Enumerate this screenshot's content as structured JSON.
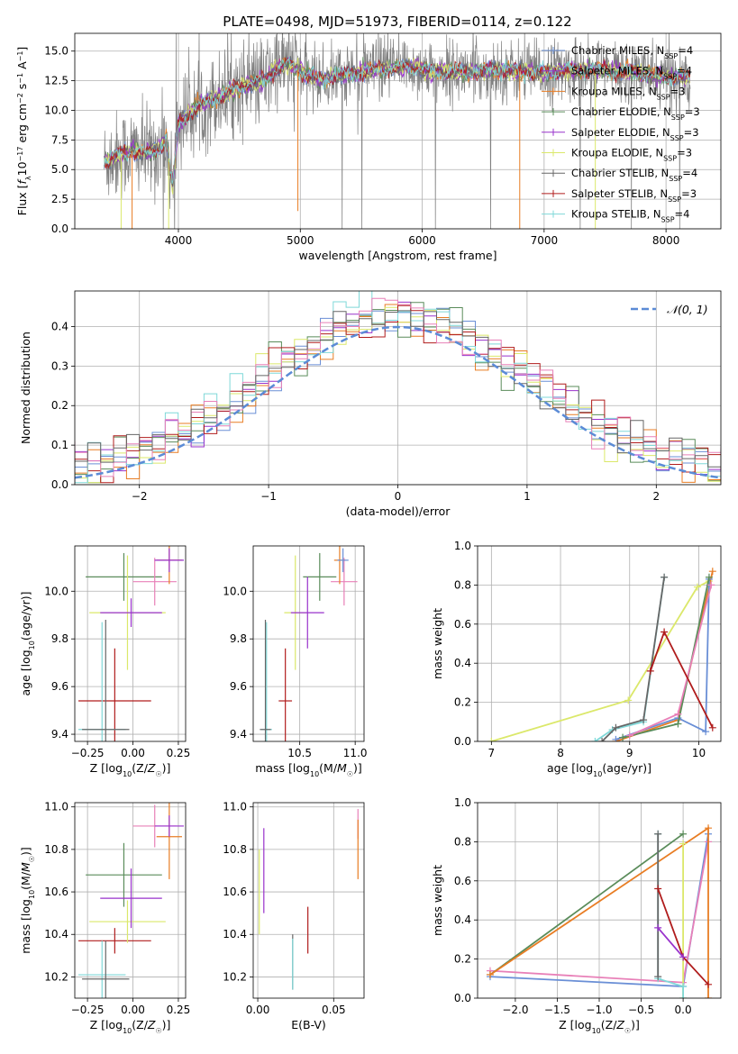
{
  "figure": {
    "title": "PLATE=0498, MJD=51973, FIBERID=0114, z=0.122"
  },
  "colors": {
    "obs": "#808080",
    "chabrier_miles": "#6a8fd6",
    "salpeter_miles": "#9932cc",
    "kroupa_miles": "#e87d24",
    "chabrier_elodie": "#5a8c5a",
    "salpeter_elodie": "#9932cc",
    "kroupa_elodie": "#dbe86a",
    "chabrier_stelib": "#666666",
    "salpeter_stelib": "#b01c1c",
    "kroupa_stelib": "#7fd8d8",
    "pink": "#e880b8",
    "gauss": "#5b8bd6"
  },
  "chart_data": [
    {
      "id": "spectrum",
      "type": "line",
      "title": "PLATE=0498, MJD=51973, FIBERID=0114, z=0.122",
      "xlabel": "wavelength [Angstrom, rest frame]",
      "ylabel": "Flux [f_λ10^-17 erg cm^-2 s^-1 A^-1]",
      "xlim": [
        3150,
        8450
      ],
      "ylim": [
        0,
        16.5
      ],
      "xticks": [
        4000,
        5000,
        6000,
        7000,
        8000
      ],
      "yticks": [
        0.0,
        2.5,
        5.0,
        7.5,
        10.0,
        12.5,
        15.0
      ],
      "ytick_labels": [
        "0.0",
        "2.5",
        "5.0",
        "7.5",
        "10.0",
        "12.5",
        "15.0"
      ],
      "legend_position": "top-right",
      "legend": [
        {
          "label": "Chabrier MILES, N",
          "sub": "SSP",
          "suffix": "=4",
          "color_key": "chabrier_miles"
        },
        {
          "label": "Salpeter MILES, N",
          "sub": "SSP",
          "suffix": "=4",
          "color_key": "salpeter_miles"
        },
        {
          "label": "Kroupa MILES, N",
          "sub": "SSP",
          "suffix": "=3",
          "color_key": "kroupa_miles"
        },
        {
          "label": "Chabrier ELODIE, N",
          "sub": "SSP",
          "suffix": "=3",
          "color_key": "chabrier_elodie"
        },
        {
          "label": "Salpeter ELODIE, N",
          "sub": "SSP",
          "suffix": "=3",
          "color_key": "salpeter_elodie"
        },
        {
          "label": "Kroupa ELODIE, N",
          "sub": "SSP",
          "suffix": "=3",
          "color_key": "kroupa_elodie"
        },
        {
          "label": "Chabrier STELIB, N",
          "sub": "SSP",
          "suffix": "=4",
          "color_key": "chabrier_stelib"
        },
        {
          "label": "Salpeter STELIB, N",
          "sub": "SSP",
          "suffix": "=3",
          "color_key": "salpeter_stelib"
        },
        {
          "label": "Kroupa STELIB, N",
          "sub": "SSP",
          "suffix": "=4",
          "color_key": "kroupa_stelib"
        }
      ],
      "continuum": [
        [
          3390,
          5.6
        ],
        [
          3450,
          6.0
        ],
        [
          3550,
          6.4
        ],
        [
          3650,
          6.6
        ],
        [
          3750,
          6.3
        ],
        [
          3850,
          6.9
        ],
        [
          3900,
          7.6
        ],
        [
          3950,
          3.5
        ],
        [
          4000,
          8.9
        ],
        [
          4100,
          9.8
        ],
        [
          4200,
          10.6
        ],
        [
          4300,
          11.0
        ],
        [
          4400,
          11.4
        ],
        [
          4500,
          12.0
        ],
        [
          4600,
          12.3
        ],
        [
          4700,
          12.4
        ],
        [
          4800,
          13.6
        ],
        [
          4900,
          13.9
        ],
        [
          5000,
          13.3
        ],
        [
          5100,
          12.8
        ],
        [
          5200,
          12.6
        ],
        [
          5300,
          13.0
        ],
        [
          5400,
          13.1
        ],
        [
          5500,
          13.2
        ],
        [
          5600,
          13.4
        ],
        [
          5700,
          13.5
        ],
        [
          5800,
          13.6
        ],
        [
          5900,
          13.7
        ],
        [
          6000,
          13.5
        ],
        [
          6100,
          13.2
        ],
        [
          6200,
          13.3
        ],
        [
          6300,
          13.3
        ],
        [
          6400,
          13.2
        ],
        [
          6500,
          13.3
        ],
        [
          6600,
          13.4
        ],
        [
          6700,
          13.3
        ],
        [
          6800,
          13.3
        ],
        [
          6900,
          13.2
        ],
        [
          7000,
          13.2
        ],
        [
          7100,
          13.3
        ],
        [
          7200,
          13.4
        ],
        [
          7300,
          13.3
        ],
        [
          7400,
          13.5
        ],
        [
          7500,
          13.4
        ],
        [
          7600,
          13.2
        ],
        [
          7700,
          13.3
        ],
        [
          7800,
          13.1
        ],
        [
          7900,
          13.0
        ],
        [
          8000,
          12.8
        ],
        [
          8100,
          12.8
        ],
        [
          8200,
          12.8
        ]
      ]
    },
    {
      "id": "residuals",
      "type": "line",
      "xlabel": "(data-model)/error",
      "ylabel": "Normed distribution",
      "xlim": [
        -2.5,
        2.5
      ],
      "ylim": [
        0,
        0.49
      ],
      "xticks": [
        -2,
        -1,
        0,
        1,
        2
      ],
      "xtick_labels": [
        "−2",
        "−1",
        "0",
        "1",
        "2"
      ],
      "yticks": [
        0.0,
        0.1,
        0.2,
        0.3,
        0.4
      ],
      "ytick_labels": [
        "0.0",
        "0.1",
        "0.2",
        "0.3",
        "0.4"
      ],
      "legend_position": "top-right",
      "legend": [
        {
          "label": "𝒩(0, 1)",
          "color_key": "gauss"
        }
      ],
      "bin_width": 0.1
    },
    {
      "id": "age_vs_Z",
      "type": "scatter",
      "xlabel": "Z [log10(Z/Z☉)]",
      "ylabel": "age [log10(age/yr)]",
      "xlim": [
        -0.32,
        0.29
      ],
      "ylim": [
        9.37,
        10.19
      ],
      "xticks": [
        -0.25,
        0.0,
        0.25
      ],
      "xtick_labels": [
        "−0.25",
        "0.00",
        "0.25"
      ],
      "yticks": [
        9.4,
        9.6,
        9.8,
        10.0
      ],
      "ytick_labels": [
        "9.4",
        "9.6",
        "9.8",
        "10.0"
      ],
      "points": [
        {
          "c": "chabrier_elodie",
          "x": -0.05,
          "xerr": 0.21,
          "y": 10.06,
          "yerr": 0.1
        },
        {
          "c": "salpeter_stelib",
          "x": -0.1,
          "xerr": 0.2,
          "y": 9.54,
          "yerr": 0.22
        },
        {
          "c": "kroupa_stelib",
          "x": -0.17,
          "xerr": 0.13,
          "y": 9.42,
          "yerr": 0.45
        },
        {
          "c": "chabrier_stelib",
          "x": -0.15,
          "xerr": 0.13,
          "y": 9.42,
          "yerr": 0.46
        },
        {
          "c": "kroupa_elodie",
          "x": -0.03,
          "xerr": 0.21,
          "y": 9.91,
          "yerr": 0.24
        },
        {
          "c": "salpeter_miles",
          "x": -0.01,
          "xerr": 0.17,
          "y": 9.91,
          "yerr": 0.06
        },
        {
          "c": "pink",
          "x": 0.12,
          "xerr": 0.12,
          "y": 10.04,
          "yerr": 0.1
        },
        {
          "c": "kroupa_miles",
          "x": 0.2,
          "xerr": 0.07,
          "y": 10.13,
          "yerr": 0.1
        },
        {
          "c": "salpeter_miles",
          "x": 0.2,
          "xerr": 0.08,
          "y": 10.13,
          "yerr": 0.05
        }
      ]
    },
    {
      "id": "age_vs_mass",
      "type": "scatter",
      "xlabel": "mass [log10(M/M☉)]",
      "ylabel": "",
      "xlim": [
        10.08,
        11.08
      ],
      "ylim": [
        9.37,
        10.19
      ],
      "xticks": [
        10.5,
        11.0
      ],
      "xtick_labels": [
        "10.5",
        "11.0"
      ],
      "yticks": [
        9.4,
        9.6,
        9.8,
        10.0
      ],
      "ytick_labels": [
        "9.4",
        "9.6",
        "9.8",
        "10.0"
      ],
      "points": [
        {
          "c": "chabrier_elodie",
          "x": 10.68,
          "xerr": 0.15,
          "y": 10.06,
          "yerr": 0.1
        },
        {
          "c": "salpeter_stelib",
          "x": 10.37,
          "xerr": 0.06,
          "y": 9.54,
          "yerr": 0.22
        },
        {
          "c": "kroupa_stelib",
          "x": 10.2,
          "xerr": 0.05,
          "y": 9.42,
          "yerr": 0.45
        },
        {
          "c": "chabrier_stelib",
          "x": 10.19,
          "xerr": 0.05,
          "y": 9.42,
          "yerr": 0.46
        },
        {
          "c": "kroupa_elodie",
          "x": 10.46,
          "xerr": 0.1,
          "y": 9.91,
          "yerr": 0.24
        },
        {
          "c": "salpeter_miles",
          "x": 10.57,
          "xerr": 0.15,
          "y": 9.91,
          "yerr": 0.15
        },
        {
          "c": "pink",
          "x": 10.9,
          "xerr": 0.12,
          "y": 10.04,
          "yerr": 0.1
        },
        {
          "c": "kroupa_miles",
          "x": 10.86,
          "xerr": 0.05,
          "y": 10.13,
          "yerr": 0.1
        },
        {
          "c": "chabrier_miles",
          "x": 10.89,
          "xerr": 0.05,
          "y": 10.13,
          "yerr": 0.05
        }
      ]
    },
    {
      "id": "massweight_vs_age",
      "type": "line",
      "xlabel": "age [log10(age/yr)]",
      "ylabel": "mass weight",
      "xlim": [
        6.8,
        10.32
      ],
      "ylim": [
        0,
        1
      ],
      "xticks": [
        7,
        8,
        9,
        10
      ],
      "yticks": [
        0.0,
        0.2,
        0.4,
        0.6,
        0.8,
        1.0
      ],
      "ytick_labels": [
        "0.0",
        "0.2",
        "0.4",
        "0.6",
        "0.8",
        "1.0"
      ],
      "series": [
        {
          "c": "kroupa_elodie",
          "pts": [
            [
              7.0,
              0.0
            ],
            [
              8.98,
              0.21
            ],
            [
              9.98,
              0.79
            ],
            [
              10.15,
              0.82
            ]
          ]
        },
        {
          "c": "kroupa_miles",
          "pts": [
            [
              8.8,
              0.0
            ],
            [
              9.7,
              0.11
            ],
            [
              10.2,
              0.87
            ]
          ]
        },
        {
          "c": "chabrier_miles",
          "pts": [
            [
              8.8,
              0.01
            ],
            [
              9.7,
              0.12
            ],
            [
              10.1,
              0.05
            ],
            [
              10.15,
              0.83
            ]
          ]
        },
        {
          "c": "chabrier_elodie",
          "pts": [
            [
              8.9,
              0.02
            ],
            [
              9.7,
              0.09
            ],
            [
              10.15,
              0.84
            ]
          ]
        },
        {
          "c": "pink",
          "pts": [
            [
              9.0,
              0.03
            ],
            [
              9.7,
              0.14
            ],
            [
              10.18,
              0.8
            ]
          ]
        },
        {
          "c": "kroupa_stelib",
          "pts": [
            [
              8.5,
              0.0
            ],
            [
              8.75,
              0.06
            ],
            [
              9.2,
              0.1
            ],
            [
              9.5,
              0.84
            ]
          ]
        },
        {
          "c": "chabrier_stelib",
          "pts": [
            [
              8.6,
              0.0
            ],
            [
              8.8,
              0.07
            ],
            [
              9.2,
              0.11
            ],
            [
              9.5,
              0.84
            ]
          ]
        },
        {
          "c": "salpeter_stelib",
          "pts": [
            [
              9.3,
              0.36
            ],
            [
              9.5,
              0.56
            ],
            [
              10.2,
              0.07
            ]
          ]
        }
      ]
    },
    {
      "id": "mass_vs_Z",
      "type": "scatter",
      "xlabel": "Z [log10(Z/Z☉)]",
      "ylabel": "mass [log10(M/M☉)]",
      "xlim": [
        -0.32,
        0.29
      ],
      "ylim": [
        10.1,
        11.02
      ],
      "xticks": [
        -0.25,
        0.0,
        0.25
      ],
      "xtick_labels": [
        "−0.25",
        "0.00",
        "0.25"
      ],
      "yticks": [
        10.2,
        10.4,
        10.6,
        10.8,
        11.0
      ],
      "ytick_labels": [
        "10.2",
        "10.4",
        "10.6",
        "10.8",
        "11.0"
      ],
      "points": [
        {
          "c": "chabrier_elodie",
          "x": -0.05,
          "xerr": 0.21,
          "y": 10.68,
          "yerr": 0.15
        },
        {
          "c": "salpeter_stelib",
          "x": -0.1,
          "xerr": 0.2,
          "y": 10.37,
          "yerr": 0.06
        },
        {
          "c": "kroupa_stelib",
          "x": -0.17,
          "xerr": 0.13,
          "y": 10.21,
          "yerr": 0.16
        },
        {
          "c": "chabrier_stelib",
          "x": -0.15,
          "xerr": 0.13,
          "y": 10.19,
          "yerr": 0.18
        },
        {
          "c": "kroupa_elodie",
          "x": -0.03,
          "xerr": 0.21,
          "y": 10.46,
          "yerr": 0.1
        },
        {
          "c": "salpeter_miles",
          "x": -0.01,
          "xerr": 0.17,
          "y": 10.57,
          "yerr": 0.14
        },
        {
          "c": "pink",
          "x": 0.12,
          "xerr": 0.12,
          "y": 10.91,
          "yerr": 0.1
        },
        {
          "c": "kroupa_miles",
          "x": 0.2,
          "xerr": 0.07,
          "y": 10.86,
          "yerr": 0.2
        },
        {
          "c": "salpeter_miles",
          "x": 0.2,
          "xerr": 0.08,
          "y": 10.91,
          "yerr": 0.05
        }
      ]
    },
    {
      "id": "mass_vs_ebv",
      "type": "scatter",
      "xlabel": "E(B-V)",
      "ylabel": "",
      "xlim": [
        -0.003,
        0.07
      ],
      "ylim": [
        10.1,
        11.02
      ],
      "xticks": [
        0.0,
        0.05
      ],
      "xtick_labels": [
        "0.00",
        "0.05"
      ],
      "yticks": [
        10.2,
        10.4,
        10.6,
        10.8,
        11.0
      ],
      "ytick_labels": [
        "10.2",
        "10.4",
        "10.6",
        "10.8",
        "11.0"
      ],
      "points": [
        {
          "c": "kroupa_elodie",
          "x": 0.001,
          "xerr": 0,
          "y": 10.6,
          "yerr": 0.2
        },
        {
          "c": "salpeter_miles",
          "x": 0.004,
          "xerr": 0,
          "y": 10.7,
          "yerr": 0.2
        },
        {
          "c": "chabrier_stelib",
          "x": 0.023,
          "xerr": 0,
          "y": 10.27,
          "yerr": 0.13
        },
        {
          "c": "kroupa_stelib",
          "x": 0.023,
          "xerr": 0,
          "y": 10.26,
          "yerr": 0.12
        },
        {
          "c": "salpeter_stelib",
          "x": 0.033,
          "xerr": 0,
          "y": 10.42,
          "yerr": 0.11
        },
        {
          "c": "pink",
          "x": 0.066,
          "xerr": 0,
          "y": 10.92,
          "yerr": 0.07
        },
        {
          "c": "kroupa_miles",
          "x": 0.066,
          "xerr": 0,
          "y": 10.8,
          "yerr": 0.14
        }
      ]
    },
    {
      "id": "massweight_vs_Z",
      "type": "line",
      "xlabel": "Z [log10(Z/Z☉)]",
      "ylabel": "mass weight",
      "xlim": [
        -2.45,
        0.45
      ],
      "ylim": [
        0,
        1
      ],
      "xticks": [
        -2.0,
        -1.5,
        -1.0,
        -0.5,
        0.0
      ],
      "xtick_labels": [
        "−2.0",
        "−1.5",
        "−1.0",
        "−0.5",
        "0.0"
      ],
      "yticks": [
        0.0,
        0.2,
        0.4,
        0.6,
        0.8,
        1.0
      ],
      "ytick_labels": [
        "0.0",
        "0.2",
        "0.4",
        "0.6",
        "0.8",
        "1.0"
      ],
      "series": [
        {
          "c": "chabrier_miles",
          "pts": [
            [
              -2.3,
              0.11
            ],
            [
              0.0,
              0.06
            ],
            [
              0.3,
              0.84
            ]
          ]
        },
        {
          "c": "pink",
          "pts": [
            [
              -2.3,
              0.14
            ],
            [
              0.0,
              0.08
            ],
            [
              0.3,
              0.8
            ]
          ]
        },
        {
          "c": "chabrier_elodie",
          "pts": [
            [
              -2.3,
              0.12
            ],
            [
              0.0,
              0.84
            ]
          ]
        },
        {
          "c": "kroupa_miles",
          "pts": [
            [
              -2.3,
              0.12
            ],
            [
              0.3,
              0.87
            ],
            [
              0.3,
              0.0
            ]
          ]
        },
        {
          "c": "kroupa_elodie",
          "pts": [
            [
              0.0,
              0.79
            ],
            [
              0.0,
              0.0
            ]
          ]
        },
        {
          "c": "kroupa_stelib",
          "pts": [
            [
              -0.3,
              0.84
            ],
            [
              -0.3,
              0.1
            ],
            [
              0.0,
              0.06
            ],
            [
              0.0,
              0.0
            ]
          ]
        },
        {
          "c": "chabrier_stelib",
          "pts": [
            [
              -0.3,
              0.84
            ],
            [
              -0.3,
              0.11
            ]
          ]
        },
        {
          "c": "salpeter_stelib",
          "pts": [
            [
              -0.3,
              0.56
            ],
            [
              0.0,
              0.21
            ],
            [
              0.3,
              0.07
            ]
          ]
        },
        {
          "c": "salpeter_miles",
          "pts": [
            [
              -0.3,
              0.36
            ],
            [
              0.0,
              0.21
            ]
          ]
        }
      ]
    }
  ]
}
